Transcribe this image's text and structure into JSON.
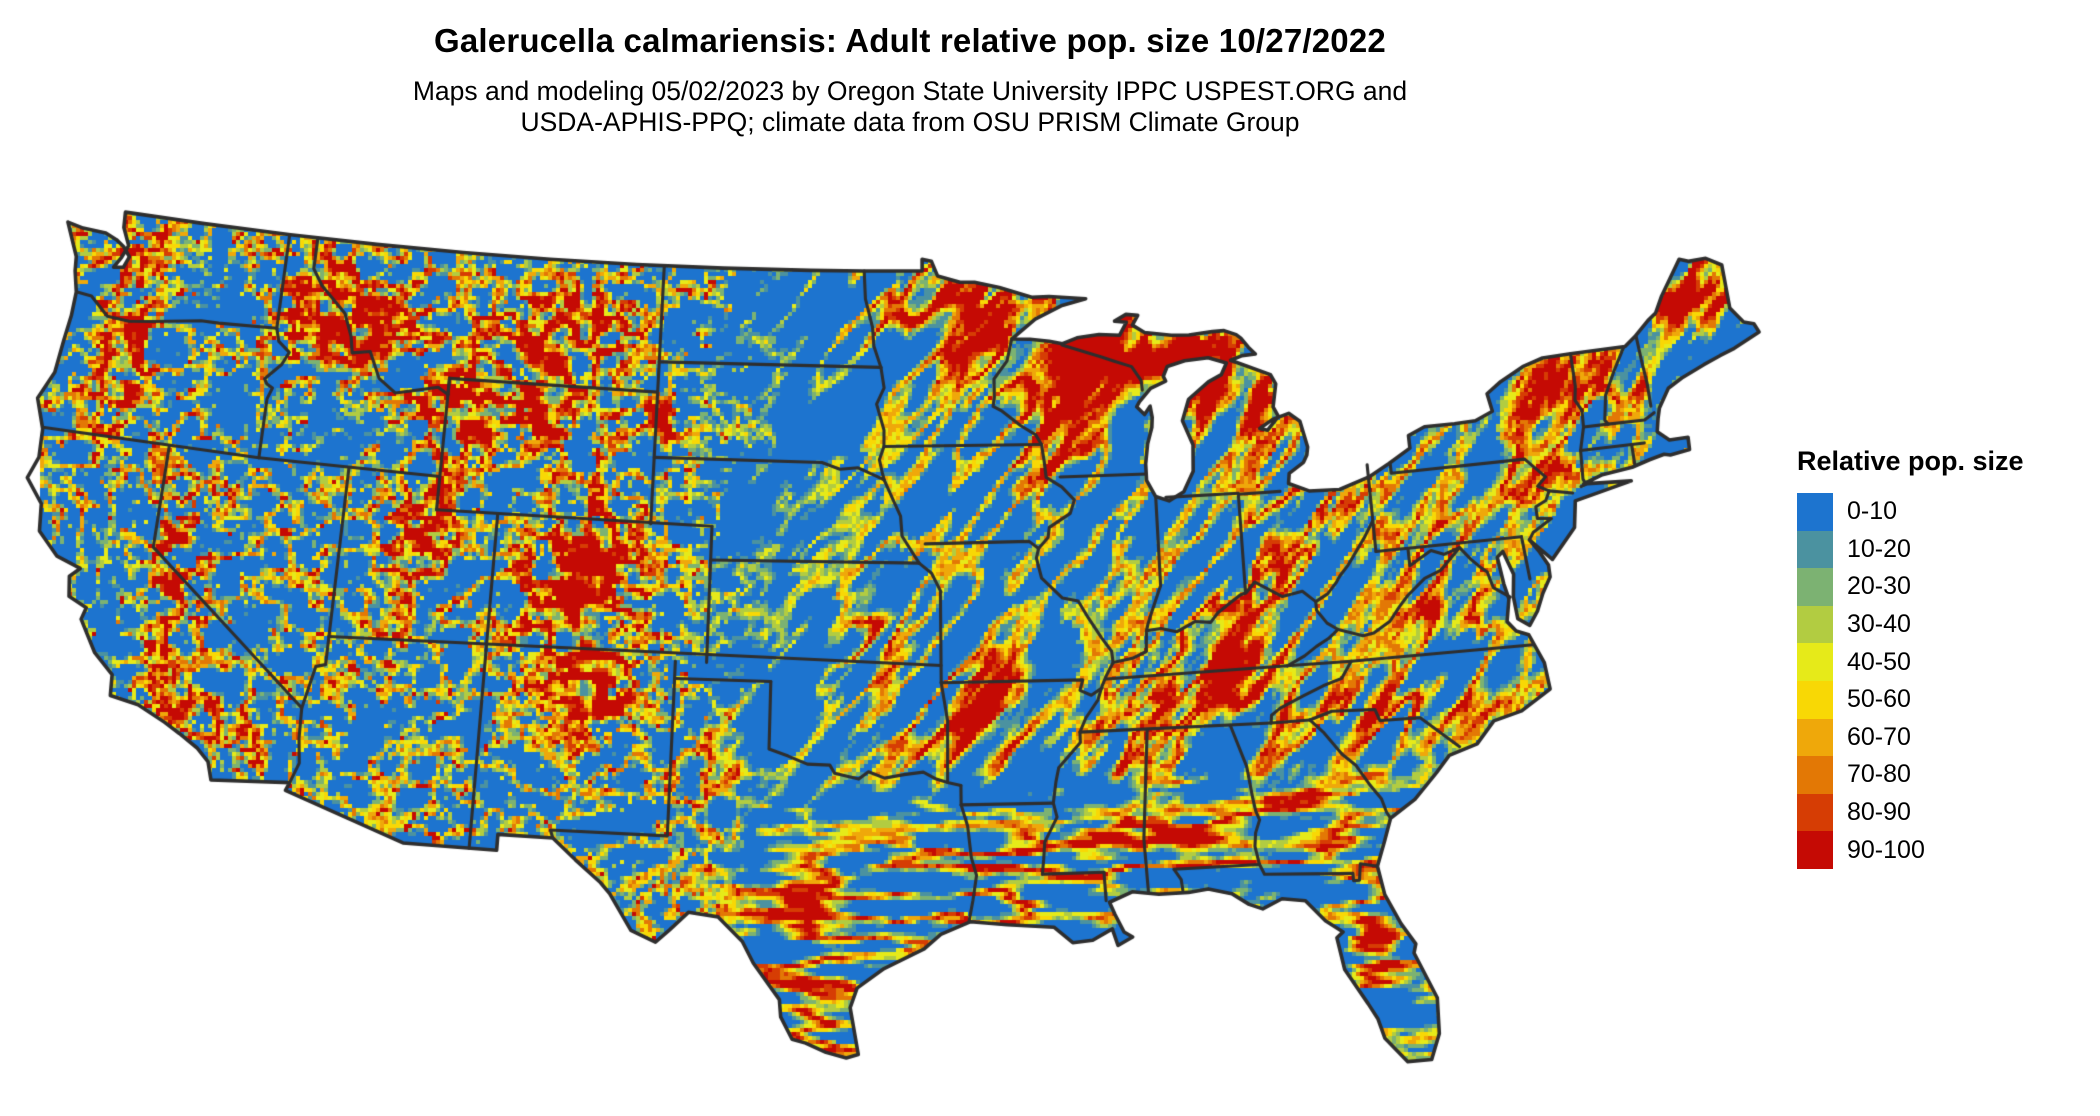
{
  "header": {
    "title": "Galerucella calmariensis: Adult relative pop. size 10/27/2022",
    "subtitle_line1": "Maps and modeling 05/02/2023 by Oregon State University IPPC USPEST.ORG and",
    "subtitle_line2": "USDA-APHIS-PPQ; climate data from OSU PRISM Climate Group"
  },
  "legend": {
    "title": "Relative pop. size",
    "entries": [
      {
        "label": "0-10",
        "color": "#1d74cf"
      },
      {
        "label": "10-20",
        "color": "#4b92a0"
      },
      {
        "label": "20-30",
        "color": "#7cb272"
      },
      {
        "label": "30-40",
        "color": "#b2cc41"
      },
      {
        "label": "40-50",
        "color": "#e6ea19"
      },
      {
        "label": "50-60",
        "color": "#f8d805"
      },
      {
        "label": "60-70",
        "color": "#efa80a"
      },
      {
        "label": "70-80",
        "color": "#e37805"
      },
      {
        "label": "80-90",
        "color": "#d63d04"
      },
      {
        "label": "90-100",
        "color": "#c50a04"
      }
    ]
  },
  "map": {
    "region_label": "Continental United States",
    "water_color": "#ffffff",
    "border_color": "#2e2e2e"
  }
}
